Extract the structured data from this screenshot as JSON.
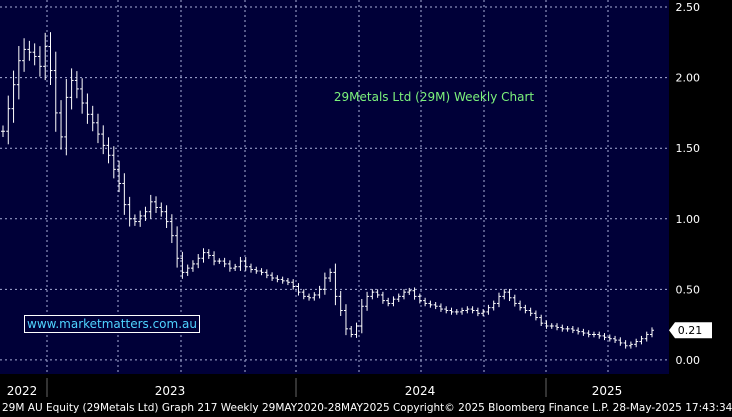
{
  "colors": {
    "plot_bg": "#000038",
    "grid": "#aab0d8",
    "axis_bg": "#000000",
    "text": "#ffffff",
    "title": "#7cf27c",
    "watermark_text": "#4fd3ff",
    "price_bar": "#ffffff"
  },
  "chart_data": {
    "type": "line",
    "style": "ohlc-bars",
    "title": "29Metals Ltd (29M) Weekly Chart",
    "xlabel": "",
    "ylabel": "",
    "y_axis_side": "right",
    "ylim": [
      -0.1,
      2.55
    ],
    "y_ticks": [
      "2.50",
      "2.00",
      "1.50",
      "1.00",
      "0.50",
      "0.00"
    ],
    "y_tick_values": [
      2.5,
      2.0,
      1.5,
      1.0,
      0.5,
      0.0
    ],
    "x_year_labels": [
      "2022",
      "2023",
      "2024",
      "2025"
    ],
    "grid": true,
    "last_value_label": "0.21",
    "last_value": 0.21,
    "series": [
      {
        "values": [
          1.62,
          1.78,
          1.95,
          2.12,
          2.2,
          2.18,
          2.15,
          2.08,
          2.22,
          2.05,
          1.75,
          1.58,
          1.86,
          1.98,
          1.92,
          1.82,
          1.74,
          1.68,
          1.6,
          1.52,
          1.45,
          1.35,
          1.25,
          1.1,
          1.0,
          0.98,
          1.02,
          1.05,
          1.12,
          1.08,
          1.05,
          0.98,
          0.88,
          0.72,
          0.62,
          0.65,
          0.68,
          0.72,
          0.76,
          0.74,
          0.7,
          0.7,
          0.68,
          0.65,
          0.66,
          0.7,
          0.66,
          0.64,
          0.63,
          0.62,
          0.6,
          0.58,
          0.57,
          0.56,
          0.55,
          0.52,
          0.48,
          0.45,
          0.44,
          0.46,
          0.5,
          0.58,
          0.62,
          0.45,
          0.35,
          0.22,
          0.18,
          0.24,
          0.38,
          0.45,
          0.48,
          0.46,
          0.42,
          0.4,
          0.43,
          0.45,
          0.48,
          0.49,
          0.45,
          0.42,
          0.4,
          0.39,
          0.38,
          0.36,
          0.35,
          0.34,
          0.34,
          0.35,
          0.36,
          0.35,
          0.33,
          0.34,
          0.37,
          0.4,
          0.45,
          0.48,
          0.44,
          0.4,
          0.37,
          0.35,
          0.33,
          0.3,
          0.26,
          0.24,
          0.24,
          0.23,
          0.22,
          0.22,
          0.21,
          0.2,
          0.19,
          0.18,
          0.18,
          0.17,
          0.16,
          0.15,
          0.14,
          0.12,
          0.1,
          0.11,
          0.13,
          0.15,
          0.18,
          0.21
        ]
      }
    ]
  },
  "watermark": "www.marketmatters.com.au",
  "footer": "29M AU Equity (29Metals Ltd) Graph 217  Weekly 29MAY2020-28MAY2025 Copyright© 2025 Bloomberg Finance L.P. 28-May-2025 17:43:34"
}
